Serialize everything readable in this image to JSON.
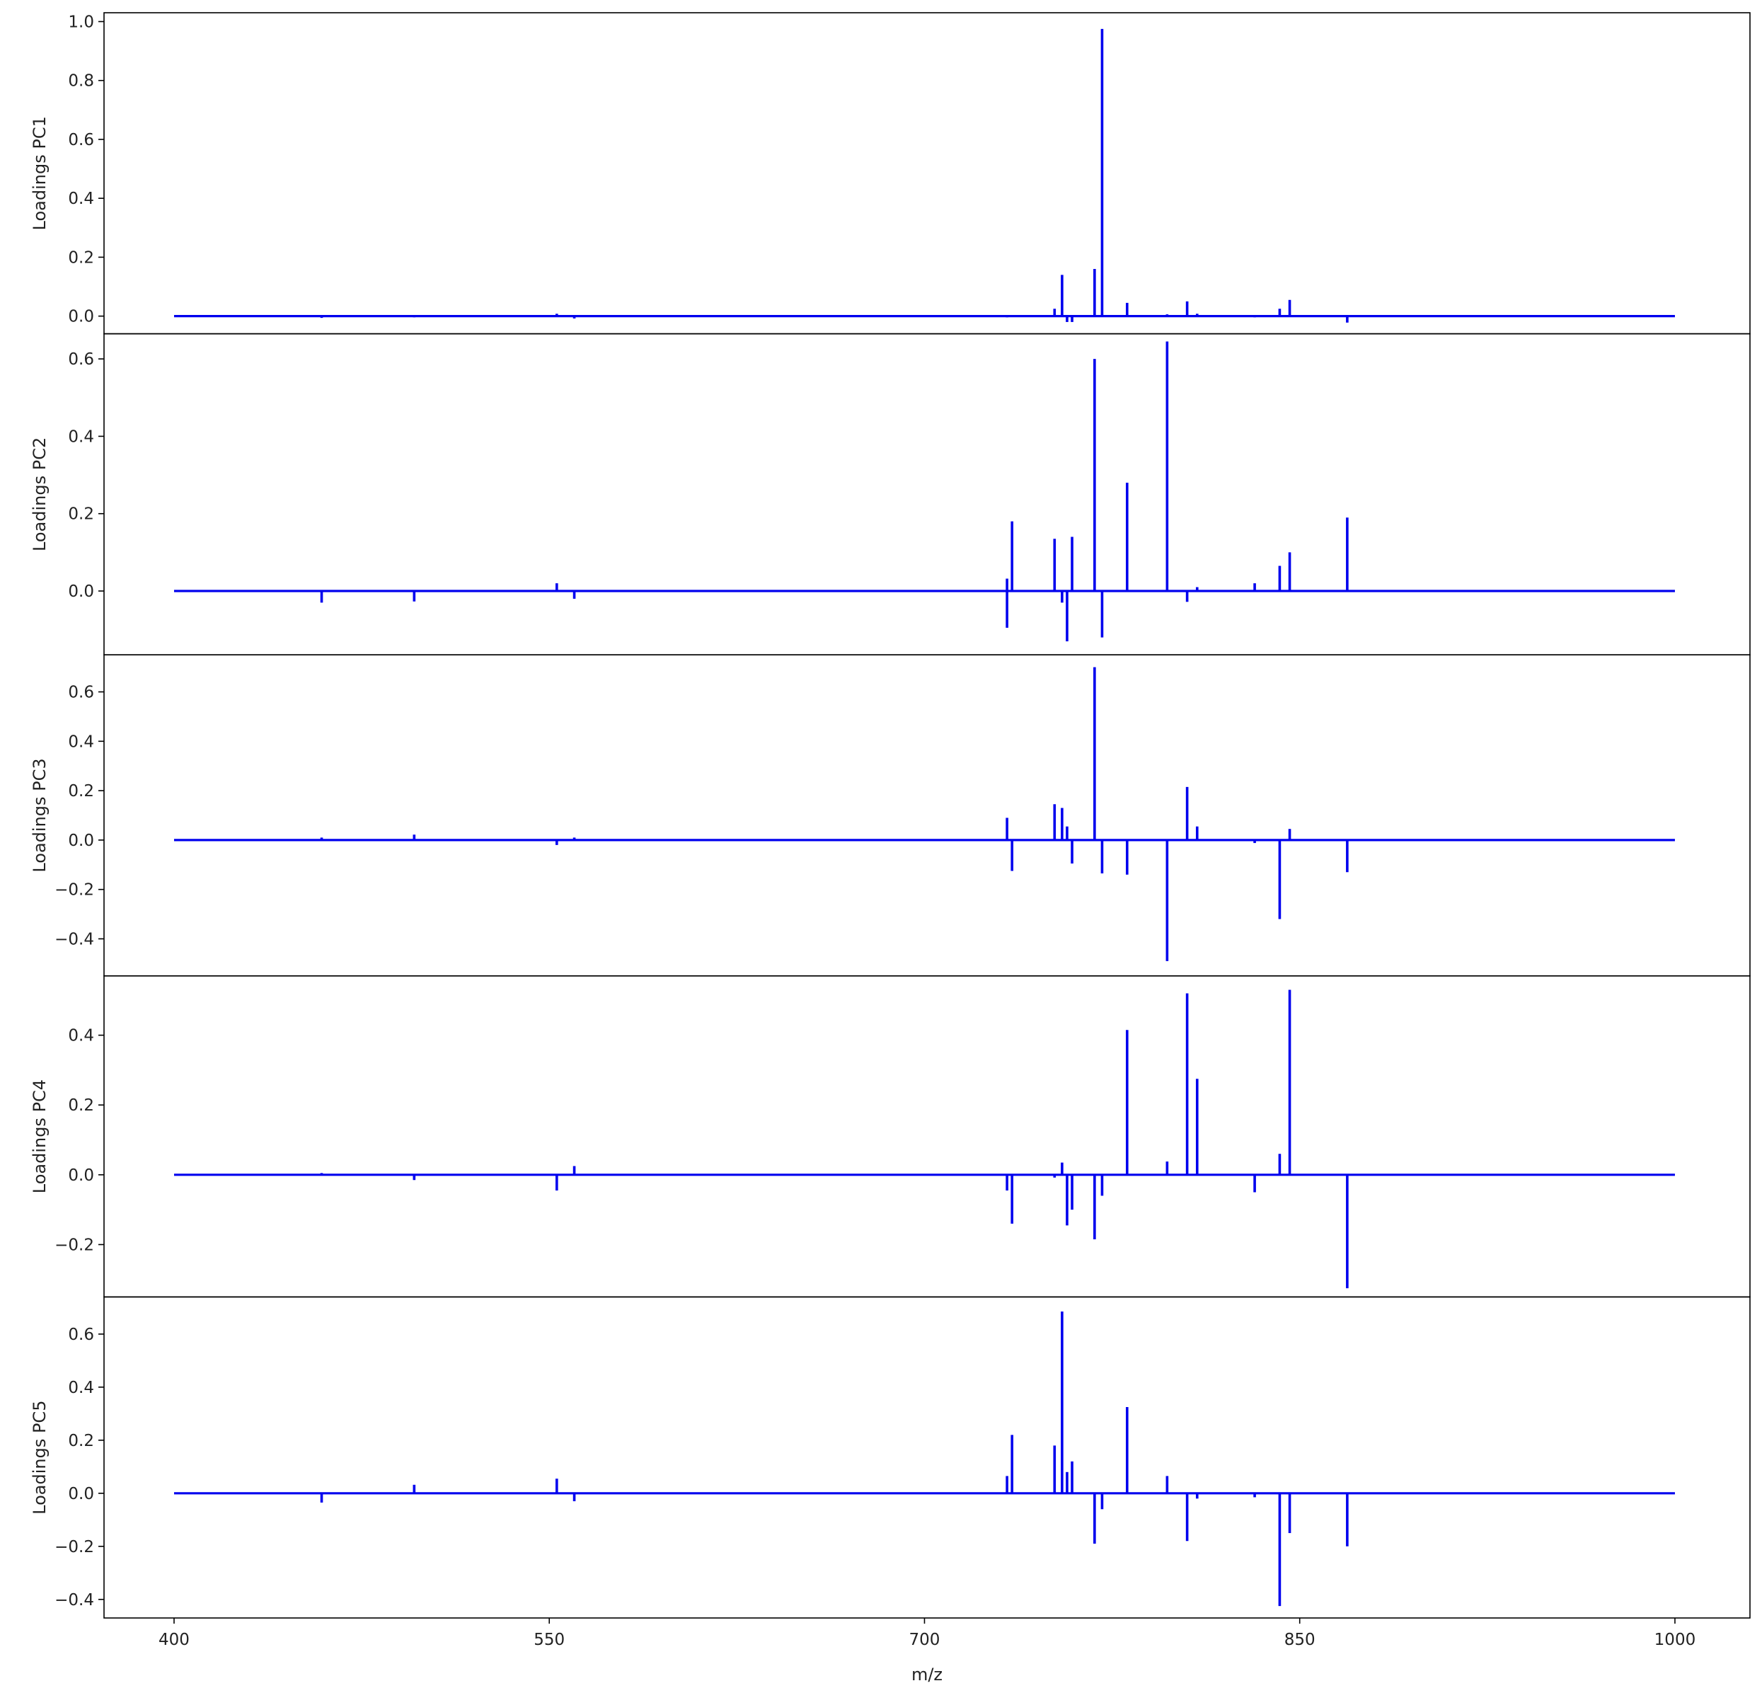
{
  "chart_data": {
    "type": "line",
    "xlabel": "m/z",
    "xlim": [
      372,
      1030
    ],
    "xticks": [
      400,
      550,
      700,
      850,
      1000
    ],
    "baseline_start": 400,
    "baseline_end": 1000,
    "series_color": "#0000ee",
    "panels": [
      {
        "ylabel": "Loadings PC1",
        "ylim": [
          -0.06,
          1.03
        ],
        "yticks": [
          0.0,
          0.2,
          0.4,
          0.6,
          0.8,
          1.0
        ],
        "tick_digits": 1,
        "peaks": [
          [
            459,
            -0.006
          ],
          [
            496,
            -0.004
          ],
          [
            553,
            0.008
          ],
          [
            560,
            -0.008
          ],
          [
            733,
            -0.004
          ],
          [
            752,
            0.025
          ],
          [
            755,
            0.14
          ],
          [
            757,
            -0.02
          ],
          [
            759,
            -0.02
          ],
          [
            768,
            0.16
          ],
          [
            771,
            0.975
          ],
          [
            781,
            0.045
          ],
          [
            797,
            0.006
          ],
          [
            805,
            0.05
          ],
          [
            809,
            0.008
          ],
          [
            832,
            -0.004
          ],
          [
            842,
            0.025
          ],
          [
            846,
            0.055
          ],
          [
            869,
            -0.022
          ]
        ]
      },
      {
        "ylabel": "Loadings PC2",
        "ylim": [
          -0.165,
          0.665
        ],
        "yticks": [
          0.0,
          0.2,
          0.4,
          0.6
        ],
        "tick_digits": 1,
        "peaks": [
          [
            459,
            -0.03
          ],
          [
            496,
            -0.027
          ],
          [
            553,
            0.02
          ],
          [
            560,
            -0.02
          ],
          [
            733,
            0.032
          ],
          [
            733,
            -0.095
          ],
          [
            735,
            0.18
          ],
          [
            752,
            0.135
          ],
          [
            755,
            -0.03
          ],
          [
            757,
            -0.13
          ],
          [
            759,
            0.14
          ],
          [
            768,
            0.6
          ],
          [
            771,
            -0.12
          ],
          [
            781,
            0.28
          ],
          [
            797,
            0.645
          ],
          [
            805,
            -0.028
          ],
          [
            809,
            0.01
          ],
          [
            832,
            0.02
          ],
          [
            842,
            0.065
          ],
          [
            846,
            0.1
          ],
          [
            869,
            0.19
          ]
        ]
      },
      {
        "ylabel": "Loadings PC3",
        "ylim": [
          -0.55,
          0.75
        ],
        "yticks": [
          -0.4,
          -0.2,
          0.0,
          0.2,
          0.4,
          0.6
        ],
        "tick_digits": 1,
        "peaks": [
          [
            459,
            0.01
          ],
          [
            496,
            0.022
          ],
          [
            553,
            -0.02
          ],
          [
            560,
            0.01
          ],
          [
            733,
            0.09
          ],
          [
            735,
            -0.125
          ],
          [
            752,
            0.145
          ],
          [
            755,
            0.13
          ],
          [
            757,
            0.055
          ],
          [
            759,
            -0.095
          ],
          [
            768,
            0.7
          ],
          [
            771,
            -0.135
          ],
          [
            781,
            -0.14
          ],
          [
            797,
            -0.49
          ],
          [
            805,
            0.215
          ],
          [
            809,
            0.055
          ],
          [
            832,
            -0.012
          ],
          [
            842,
            -0.32
          ],
          [
            846,
            0.045
          ],
          [
            869,
            -0.13
          ]
        ]
      },
      {
        "ylabel": "Loadings PC4",
        "ylim": [
          -0.35,
          0.57
        ],
        "yticks": [
          -0.2,
          0.0,
          0.2,
          0.4
        ],
        "tick_digits": 1,
        "peaks": [
          [
            459,
            0.005
          ],
          [
            496,
            -0.015
          ],
          [
            553,
            -0.045
          ],
          [
            560,
            0.025
          ],
          [
            733,
            -0.045
          ],
          [
            735,
            -0.14
          ],
          [
            752,
            -0.008
          ],
          [
            755,
            0.035
          ],
          [
            757,
            -0.145
          ],
          [
            759,
            -0.1
          ],
          [
            768,
            -0.185
          ],
          [
            771,
            -0.06
          ],
          [
            781,
            0.415
          ],
          [
            797,
            0.038
          ],
          [
            805,
            0.52
          ],
          [
            809,
            0.275
          ],
          [
            832,
            -0.05
          ],
          [
            842,
            0.06
          ],
          [
            846,
            0.53
          ],
          [
            869,
            -0.325
          ]
        ]
      },
      {
        "ylabel": "Loadings PC5",
        "ylim": [
          -0.47,
          0.74
        ],
        "yticks": [
          -0.4,
          -0.2,
          0.0,
          0.2,
          0.4,
          0.6
        ],
        "tick_digits": 1,
        "peaks": [
          [
            459,
            -0.035
          ],
          [
            496,
            0.032
          ],
          [
            553,
            0.055
          ],
          [
            560,
            -0.03
          ],
          [
            733,
            0.065
          ],
          [
            735,
            0.22
          ],
          [
            752,
            0.18
          ],
          [
            755,
            0.685
          ],
          [
            757,
            0.08
          ],
          [
            759,
            0.12
          ],
          [
            768,
            -0.19
          ],
          [
            771,
            -0.06
          ],
          [
            781,
            0.325
          ],
          [
            797,
            0.065
          ],
          [
            805,
            -0.18
          ],
          [
            809,
            -0.02
          ],
          [
            832,
            -0.015
          ],
          [
            842,
            -0.425
          ],
          [
            846,
            -0.15
          ],
          [
            869,
            -0.2
          ]
        ]
      }
    ]
  }
}
